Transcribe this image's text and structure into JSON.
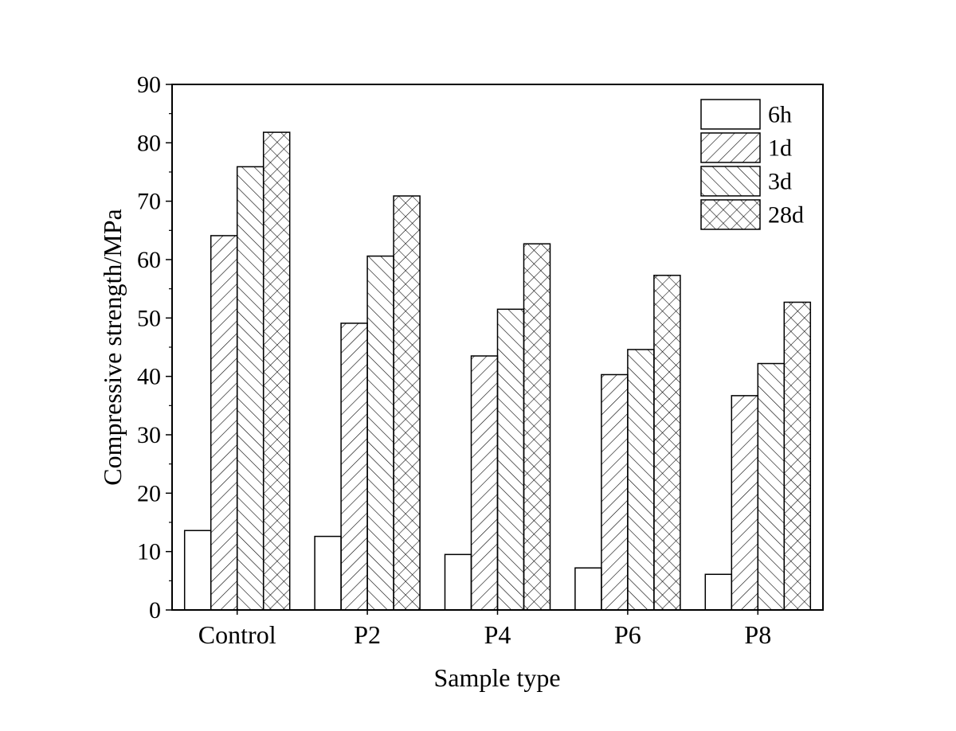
{
  "chart_data": {
    "type": "bar",
    "title": "",
    "xlabel": "Sample type",
    "ylabel": "Compressive strength/MPa",
    "ylim": [
      0,
      90
    ],
    "yticks": [
      0,
      10,
      20,
      30,
      40,
      50,
      60,
      70,
      80,
      90
    ],
    "categories": [
      "Control",
      "P2",
      "P4",
      "P6",
      "P8"
    ],
    "series": [
      {
        "name": "6h",
        "pattern": "blank",
        "values": [
          13.6,
          12.6,
          9.5,
          7.2,
          6.1
        ]
      },
      {
        "name": "1d",
        "pattern": "forward",
        "values": [
          64.1,
          49.1,
          43.5,
          40.3,
          36.7
        ]
      },
      {
        "name": "3d",
        "pattern": "backward",
        "values": [
          75.9,
          60.6,
          51.5,
          44.6,
          42.2
        ]
      },
      {
        "name": "28d",
        "pattern": "crosshatch",
        "values": [
          81.8,
          70.9,
          62.7,
          57.3,
          52.7
        ]
      }
    ],
    "legend_position": "top-right",
    "grid": false
  }
}
